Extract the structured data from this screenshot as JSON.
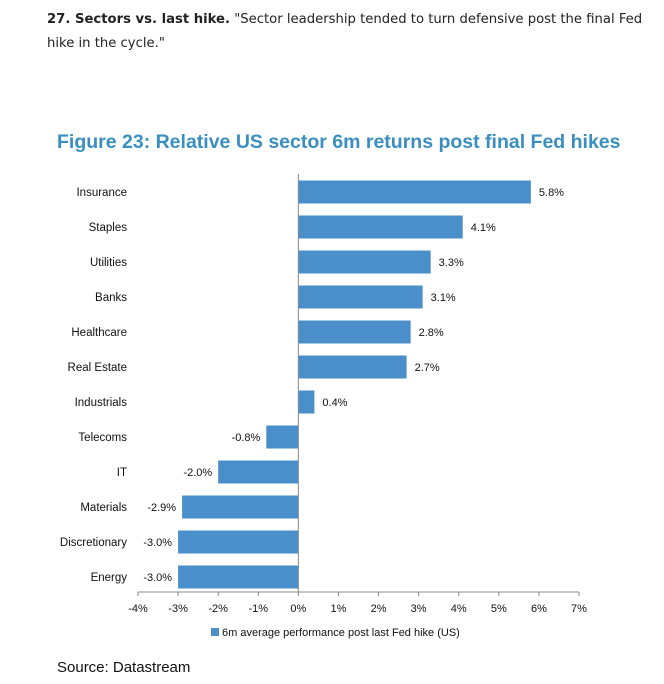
{
  "intro": {
    "lead": "27. Sectors vs. last hike.",
    "quote": " \"Sector leadership tended to turn defensive post the final Fed hike in the cycle.\""
  },
  "source": "Source: Datastream",
  "colors": {
    "bar": "#4a8fc9",
    "title": "#3a8fc0",
    "axis": "#888888"
  },
  "chart_data": {
    "type": "bar",
    "orientation": "horizontal",
    "title": "Figure 23: Relative US sector 6m returns post final Fed hikes",
    "categories": [
      "Insurance",
      "Staples",
      "Utilities",
      "Banks",
      "Healthcare",
      "Real Estate",
      "Industrials",
      "Telecoms",
      "IT",
      "Materials",
      "Discretionary",
      "Energy"
    ],
    "series": [
      {
        "name": "6m average performance post last Fed hike (US)",
        "values": [
          5.8,
          4.1,
          3.3,
          3.1,
          2.8,
          2.7,
          0.4,
          -0.8,
          -2.0,
          -2.9,
          -3.0,
          -3.0
        ],
        "labels": [
          "5.8%",
          "4.1%",
          "3.3%",
          "3.1%",
          "2.8%",
          "2.7%",
          "0.4%",
          "-0.8%",
          "-2.0%",
          "-2.9%",
          "-3.0%",
          "-3.0%"
        ]
      }
    ],
    "xlim": [
      -4,
      7
    ],
    "xticks": [
      -4,
      -3,
      -2,
      -1,
      0,
      1,
      2,
      3,
      4,
      5,
      6,
      7
    ],
    "xtick_labels": [
      "-4%",
      "-3%",
      "-2%",
      "-1%",
      "0%",
      "1%",
      "2%",
      "3%",
      "4%",
      "5%",
      "6%",
      "7%"
    ],
    "legend_position": "bottom",
    "grid": false
  }
}
